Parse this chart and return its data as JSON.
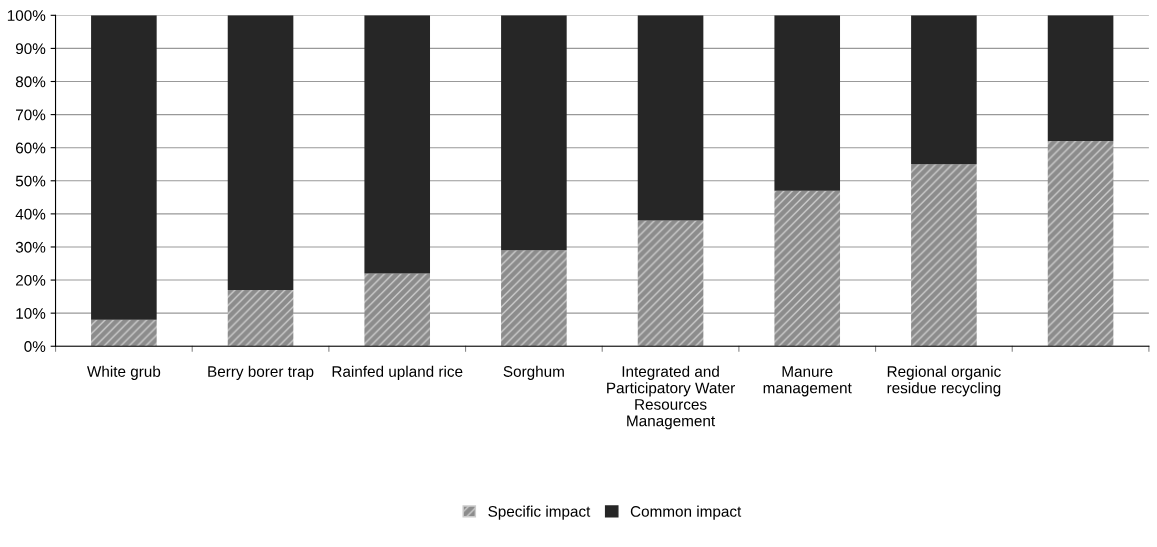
{
  "chart_data": {
    "type": "bar",
    "stacked": true,
    "categories": [
      "White grub",
      "Berry borer trap",
      "Rainfed upland rice",
      "Sorghum",
      "Integrated and\nParticipatory Water\nResources\nManagement",
      "Manure\nmanagement",
      "Regional organic\nresidue recycling",
      null
    ],
    "series": [
      {
        "name": "Specific impact",
        "color": "#8c8c8c",
        "values": [
          8,
          17,
          22,
          29,
          38,
          47,
          55,
          62
        ]
      },
      {
        "name": "Common impact",
        "color": "#262626",
        "values": [
          92,
          83,
          78,
          71,
          62,
          53,
          45,
          38
        ]
      }
    ],
    "ylim": [
      0,
      100
    ],
    "yticks": [
      {
        "value": 0,
        "label": "0%"
      },
      {
        "value": 10,
        "label": "10%"
      },
      {
        "value": 20,
        "label": "20%"
      },
      {
        "value": 30,
        "label": "30%"
      },
      {
        "value": 40,
        "label": "40%"
      },
      {
        "value": 50,
        "label": "50%"
      },
      {
        "value": 60,
        "label": "60%"
      },
      {
        "value": 70,
        "label": "70%"
      },
      {
        "value": 80,
        "label": "80%"
      },
      {
        "value": 90,
        "label": "90%"
      },
      {
        "value": 100,
        "label": "100%"
      }
    ],
    "grid": "y",
    "legend": "bottom"
  }
}
